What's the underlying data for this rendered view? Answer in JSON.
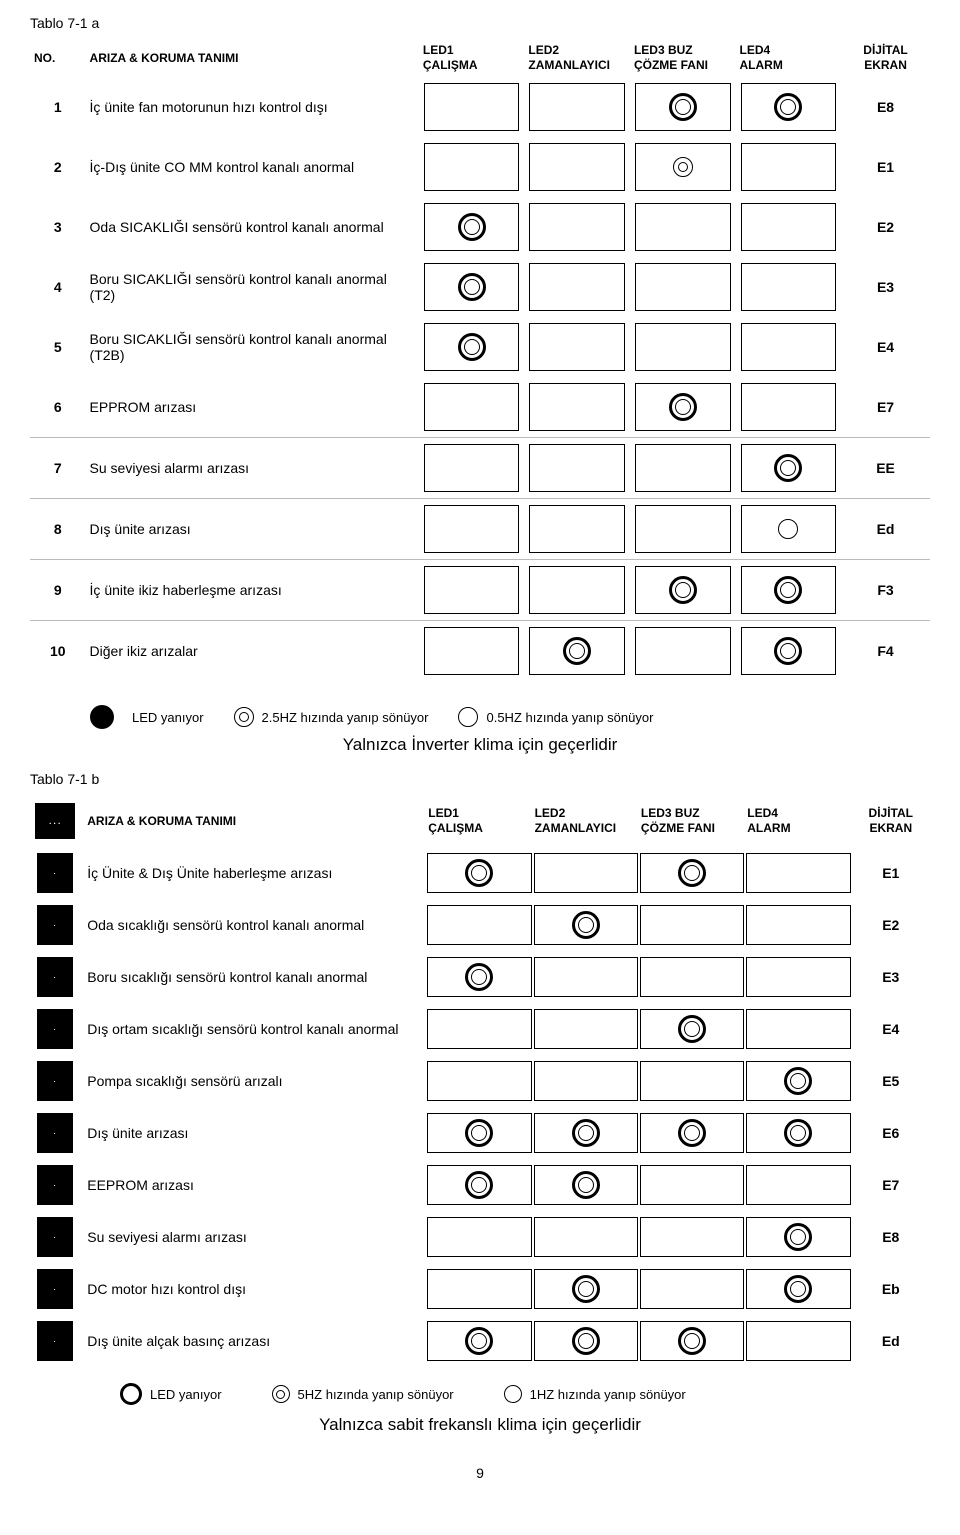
{
  "tableA": {
    "label": "Tablo 7-1 a",
    "headers": {
      "no": "NO.",
      "desc": "ARIZA & KORUMA TANIMI",
      "led1": "LED1\nÇALIŞMA",
      "led2": "LED2\nZAMANLAYICI",
      "led3": "LED3 BUZ\nÇÖZME FANI",
      "led4": "LED4\nALARM",
      "code": "DİJİTAL\nEKRAN"
    },
    "rows": [
      {
        "n": "1",
        "desc": "İç ünite fan motorunun hızı kontrol dışı",
        "leds": [
          "",
          "",
          "thick",
          "thick"
        ],
        "code": "E8"
      },
      {
        "n": "2",
        "desc": "İç-Dış ünite CO MM kontrol kanalı anormal",
        "leds": [
          "",
          "",
          "med",
          ""
        ],
        "code": "E1"
      },
      {
        "n": "3",
        "desc": "Oda SICAKLIĞI sensörü kontrol kanalı anormal",
        "leds": [
          "thick",
          "",
          "",
          ""
        ],
        "code": "E2"
      },
      {
        "n": "4",
        "desc": "Boru SICAKLIĞI sensörü kontrol kanalı anormal (T2)",
        "leds": [
          "thick",
          "",
          "",
          ""
        ],
        "code": "E3"
      },
      {
        "n": "5",
        "desc": "Boru SICAKLIĞI sensörü kontrol kanalı anormal (T2B)",
        "leds": [
          "thick",
          "",
          "",
          ""
        ],
        "code": "E4"
      },
      {
        "n": "6",
        "desc": "EPPROM arızası",
        "leds": [
          "",
          "",
          "thick",
          ""
        ],
        "code": "E7"
      },
      {
        "n": "7",
        "desc": "Su seviyesi alarmı arızası",
        "leds": [
          "",
          "",
          "",
          "thick"
        ],
        "code": "EE",
        "sep": true
      },
      {
        "n": "8",
        "desc": "Dış ünite arızası",
        "leds": [
          "",
          "",
          "",
          "thin"
        ],
        "code": "Ed",
        "sep": true
      },
      {
        "n": "9",
        "desc": "İç ünite ikiz haberleşme arızası",
        "leds": [
          "",
          "",
          "thick",
          "thick"
        ],
        "code": "F3",
        "sep": true
      },
      {
        "n": "10",
        "desc": "Diğer ikiz arızalar",
        "leds": [
          "",
          "thick",
          "",
          "thick"
        ],
        "code": "F4",
        "sep": true
      }
    ],
    "legend": {
      "on": "LED yanıyor",
      "fast": "2.5HZ hızında yanıp sönüyor",
      "slow": "0.5HZ hızında yanıp sönüyor"
    },
    "subtitle": "Yalnızca İnverter klima için geçerlidir"
  },
  "tableB": {
    "label": "Tablo 7-1 b",
    "headers": {
      "no": ". . .",
      "desc": "ARIZA & KORUMA TANIMI",
      "led1": "LED1\nÇALIŞMA",
      "led2": "LED2\nZAMANLAYICI",
      "led3": "LED3 BUZ\nÇÖZME FANI",
      "led4": "LED4\nALARM",
      "code": "DİJİTAL\nEKRAN"
    },
    "rows": [
      {
        "desc": "İç Ünite & Dış Ünite haberleşme arızası",
        "leds": [
          "thick",
          "",
          "thick",
          ""
        ],
        "code": "E1"
      },
      {
        "desc": "Oda sıcaklığı sensörü kontrol kanalı anormal",
        "leds": [
          "",
          "thick",
          "",
          ""
        ],
        "code": "E2"
      },
      {
        "desc": "Boru sıcaklığı sensörü kontrol kanalı anormal",
        "leds": [
          "thick",
          "",
          "",
          ""
        ],
        "code": "E3"
      },
      {
        "desc": "Dış ortam sıcaklığı sensörü kontrol kanalı anormal",
        "leds": [
          "",
          "",
          "thick",
          ""
        ],
        "code": "E4"
      },
      {
        "desc": "Pompa sıcaklığı sensörü arızalı",
        "leds": [
          "",
          "",
          "",
          "thick"
        ],
        "code": "E5"
      },
      {
        "desc": "Dış ünite arızası",
        "leds": [
          "thick",
          "thick",
          "thick",
          "thick"
        ],
        "code": "E6"
      },
      {
        "desc": "EEPROM arızası",
        "leds": [
          "thick",
          "thick",
          "",
          ""
        ],
        "code": "E7"
      },
      {
        "desc": "Su seviyesi alarmı arızası",
        "leds": [
          "",
          "",
          "",
          "thick"
        ],
        "code": "E8"
      },
      {
        "desc": "DC motor hızı kontrol dışı",
        "leds": [
          "",
          "thick",
          "",
          "thick"
        ],
        "code": "Eb"
      },
      {
        "desc": "Dış ünite alçak basınç arızası",
        "leds": [
          "thick",
          "thick",
          "thick",
          ""
        ],
        "code": "Ed"
      }
    ],
    "legend": {
      "on": "LED yanıyor",
      "fast": "5HZ hızında yanıp sönüyor",
      "slow": "1HZ hızında yanıp sönüyor"
    },
    "subtitle": "Yalnızca sabit frekanslı klima için geçerlidir"
  },
  "pageNumber": "9"
}
